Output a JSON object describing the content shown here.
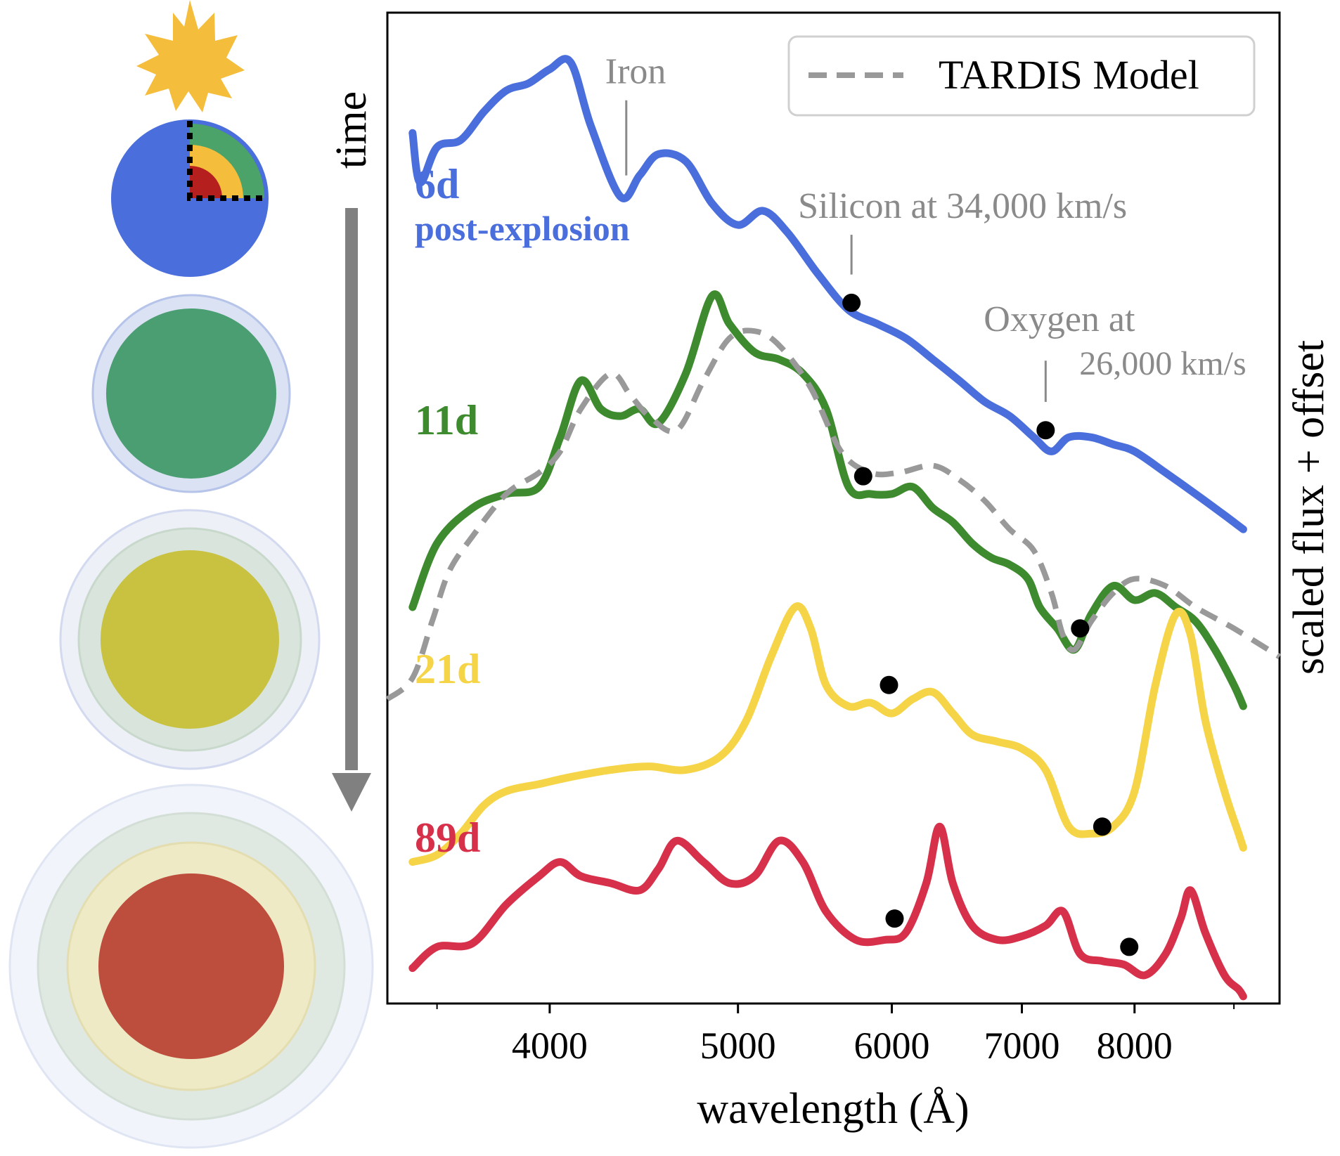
{
  "chart_data": {
    "type": "line",
    "xlabel": "wavelength (Å)",
    "ylabel": "scaled flux + offset",
    "x_scale": "log",
    "xlim": [
      3300,
      9500
    ],
    "xticks": [
      4000,
      5000,
      6000,
      7000,
      8000
    ],
    "xtick_labels": [
      "4000",
      "5000",
      "6000",
      "7000",
      "8000"
    ],
    "ylim": [
      0,
      14
    ],
    "grid": false,
    "legend": {
      "placement": "top-right",
      "entries": [
        "TARDIS Model"
      ]
    },
    "series": [
      {
        "name": "6d",
        "sublabel": "post-explosion",
        "color": "#4a6edb",
        "style": "solid",
        "points": [
          [
            3400,
            12.3
          ],
          [
            3430,
            11.6
          ],
          [
            3500,
            12.1
          ],
          [
            3600,
            12.2
          ],
          [
            3700,
            12.6
          ],
          [
            3800,
            12.9
          ],
          [
            3900,
            13.0
          ],
          [
            4000,
            13.2
          ],
          [
            4100,
            13.3
          ],
          [
            4200,
            12.4
          ],
          [
            4350,
            11.4
          ],
          [
            4450,
            11.7
          ],
          [
            4550,
            12.0
          ],
          [
            4700,
            11.9
          ],
          [
            4850,
            11.3
          ],
          [
            5000,
            11.0
          ],
          [
            5150,
            11.2
          ],
          [
            5300,
            10.9
          ],
          [
            5500,
            10.3
          ],
          [
            5700,
            9.8
          ],
          [
            5900,
            9.6
          ],
          [
            6100,
            9.4
          ],
          [
            6300,
            9.1
          ],
          [
            6500,
            8.8
          ],
          [
            6700,
            8.5
          ],
          [
            6900,
            8.3
          ],
          [
            7100,
            8.0
          ],
          [
            7250,
            7.8
          ],
          [
            7400,
            8.0
          ],
          [
            7600,
            8.0
          ],
          [
            7800,
            7.9
          ],
          [
            8000,
            7.8
          ],
          [
            8300,
            7.5
          ],
          [
            8600,
            7.2
          ],
          [
            8900,
            6.9
          ],
          [
            9100,
            6.7
          ]
        ]
      },
      {
        "name": "11d",
        "color": "#3e8a2e",
        "style": "solid",
        "points": [
          [
            3400,
            5.6
          ],
          [
            3500,
            6.5
          ],
          [
            3650,
            7.0
          ],
          [
            3800,
            7.2
          ],
          [
            3950,
            7.3
          ],
          [
            4050,
            8.0
          ],
          [
            4150,
            8.8
          ],
          [
            4250,
            8.4
          ],
          [
            4350,
            8.3
          ],
          [
            4450,
            8.4
          ],
          [
            4550,
            8.2
          ],
          [
            4700,
            8.9
          ],
          [
            4850,
            10.0
          ],
          [
            4950,
            9.6
          ],
          [
            5100,
            9.2
          ],
          [
            5250,
            9.1
          ],
          [
            5400,
            8.9
          ],
          [
            5550,
            8.4
          ],
          [
            5700,
            7.3
          ],
          [
            5850,
            7.2
          ],
          [
            6000,
            7.2
          ],
          [
            6150,
            7.3
          ],
          [
            6300,
            7.0
          ],
          [
            6450,
            6.8
          ],
          [
            6600,
            6.5
          ],
          [
            6750,
            6.3
          ],
          [
            6900,
            6.2
          ],
          [
            7050,
            6.0
          ],
          [
            7150,
            5.6
          ],
          [
            7300,
            5.3
          ],
          [
            7450,
            5.0
          ],
          [
            7600,
            5.5
          ],
          [
            7800,
            5.9
          ],
          [
            8000,
            5.7
          ],
          [
            8200,
            5.8
          ],
          [
            8400,
            5.6
          ],
          [
            8600,
            5.4
          ],
          [
            8800,
            5.0
          ],
          [
            9000,
            4.5
          ],
          [
            9100,
            4.2
          ]
        ]
      },
      {
        "name": "TARDIS Model",
        "color": "#999999",
        "style": "dashed",
        "points": [
          [
            3300,
            4.3
          ],
          [
            3400,
            4.6
          ],
          [
            3480,
            5.4
          ],
          [
            3550,
            6.1
          ],
          [
            3650,
            6.6
          ],
          [
            3800,
            7.2
          ],
          [
            3950,
            7.5
          ],
          [
            4050,
            7.8
          ],
          [
            4150,
            8.4
          ],
          [
            4300,
            8.9
          ],
          [
            4400,
            8.6
          ],
          [
            4500,
            8.3
          ],
          [
            4650,
            8.1
          ],
          [
            4800,
            8.8
          ],
          [
            4950,
            9.4
          ],
          [
            5100,
            9.5
          ],
          [
            5250,
            9.3
          ],
          [
            5450,
            8.7
          ],
          [
            5650,
            7.8
          ],
          [
            5850,
            7.5
          ],
          [
            6050,
            7.5
          ],
          [
            6300,
            7.6
          ],
          [
            6500,
            7.4
          ],
          [
            6700,
            7.1
          ],
          [
            6900,
            6.7
          ],
          [
            7100,
            6.4
          ],
          [
            7250,
            5.8
          ],
          [
            7350,
            5.2
          ],
          [
            7450,
            5.0
          ],
          [
            7600,
            5.4
          ],
          [
            7800,
            5.8
          ],
          [
            8000,
            6.0
          ],
          [
            8300,
            5.9
          ],
          [
            8600,
            5.6
          ],
          [
            9000,
            5.3
          ],
          [
            9500,
            4.9
          ]
        ]
      },
      {
        "name": "21d",
        "color": "#f5d547",
        "style": "solid",
        "points": [
          [
            3400,
            2.0
          ],
          [
            3500,
            2.1
          ],
          [
            3600,
            2.4
          ],
          [
            3700,
            2.8
          ],
          [
            3800,
            3.0
          ],
          [
            3950,
            3.1
          ],
          [
            4100,
            3.2
          ],
          [
            4300,
            3.3
          ],
          [
            4500,
            3.35
          ],
          [
            4700,
            3.3
          ],
          [
            4900,
            3.5
          ],
          [
            5050,
            4.0
          ],
          [
            5200,
            4.9
          ],
          [
            5350,
            5.6
          ],
          [
            5450,
            5.3
          ],
          [
            5550,
            4.5
          ],
          [
            5700,
            4.2
          ],
          [
            5850,
            4.25
          ],
          [
            6000,
            4.1
          ],
          [
            6150,
            4.3
          ],
          [
            6300,
            4.4
          ],
          [
            6450,
            4.1
          ],
          [
            6600,
            3.8
          ],
          [
            6800,
            3.7
          ],
          [
            7000,
            3.6
          ],
          [
            7200,
            3.3
          ],
          [
            7400,
            2.5
          ],
          [
            7600,
            2.4
          ],
          [
            7800,
            2.5
          ],
          [
            8000,
            3.0
          ],
          [
            8200,
            4.5
          ],
          [
            8400,
            5.5
          ],
          [
            8550,
            5.2
          ],
          [
            8700,
            4.0
          ],
          [
            8900,
            3.0
          ],
          [
            9050,
            2.4
          ],
          [
            9100,
            2.2
          ]
        ]
      },
      {
        "name": "89d",
        "color": "#d7304a",
        "style": "solid",
        "points": [
          [
            3400,
            0.5
          ],
          [
            3500,
            0.8
          ],
          [
            3650,
            0.85
          ],
          [
            3800,
            1.4
          ],
          [
            3950,
            1.8
          ],
          [
            4050,
            2.0
          ],
          [
            4150,
            1.8
          ],
          [
            4300,
            1.7
          ],
          [
            4450,
            1.6
          ],
          [
            4550,
            1.9
          ],
          [
            4650,
            2.3
          ],
          [
            4800,
            2.0
          ],
          [
            4950,
            1.7
          ],
          [
            5100,
            1.8
          ],
          [
            5250,
            2.3
          ],
          [
            5400,
            2.0
          ],
          [
            5550,
            1.3
          ],
          [
            5750,
            0.9
          ],
          [
            5950,
            0.9
          ],
          [
            6100,
            1.0
          ],
          [
            6250,
            1.7
          ],
          [
            6350,
            2.5
          ],
          [
            6450,
            1.7
          ],
          [
            6600,
            1.1
          ],
          [
            6800,
            0.9
          ],
          [
            7000,
            0.95
          ],
          [
            7200,
            1.1
          ],
          [
            7350,
            1.3
          ],
          [
            7500,
            0.7
          ],
          [
            7700,
            0.6
          ],
          [
            7900,
            0.55
          ],
          [
            8100,
            0.4
          ],
          [
            8300,
            0.7
          ],
          [
            8450,
            1.2
          ],
          [
            8550,
            1.6
          ],
          [
            8700,
            1.0
          ],
          [
            8900,
            0.4
          ],
          [
            9050,
            0.2
          ],
          [
            9100,
            0.1
          ]
        ]
      }
    ],
    "markers": [
      {
        "series": "6d",
        "x": 5720,
        "y": 9.9
      },
      {
        "series": "6d",
        "x": 7200,
        "y": 8.1
      },
      {
        "series": "11d",
        "x": 5800,
        "y": 7.45
      },
      {
        "series": "11d",
        "x": 7500,
        "y": 5.3
      },
      {
        "series": "21d",
        "x": 5980,
        "y": 4.5
      },
      {
        "series": "21d",
        "x": 7700,
        "y": 2.5
      },
      {
        "series": "89d",
        "x": 6020,
        "y": 1.2
      },
      {
        "series": "89d",
        "x": 7950,
        "y": 0.8
      }
    ],
    "annotations": [
      {
        "text": "Iron",
        "x": 4380,
        "y": 13.0,
        "target_y": 11.7
      },
      {
        "text": "Silicon at 34,000 km/s",
        "x": 5720,
        "y": 11.1,
        "target_y": 10.3
      },
      {
        "text": "Oxygen at",
        "text2": "26,000 km/s",
        "x": 7200,
        "y": 9.5,
        "target_y": 8.5
      }
    ]
  },
  "side_panel": {
    "time_label": "time",
    "explosion_color": "#f5bd3c",
    "ejecta_colors": [
      "#4a6edb",
      "#4ba36a",
      "#c8c240",
      "#bd4d3c"
    ]
  }
}
